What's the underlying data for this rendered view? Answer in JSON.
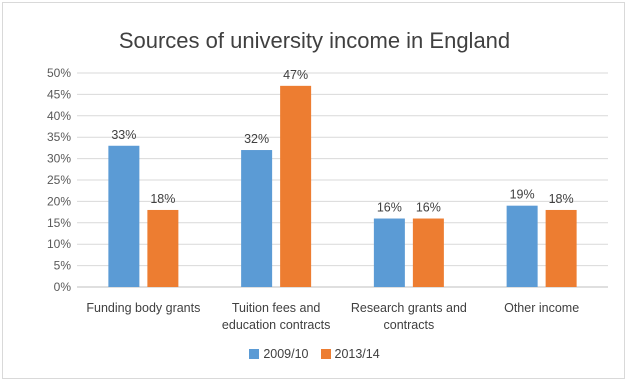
{
  "chart_data": {
    "type": "bar",
    "title": "Sources of university income in England",
    "categories": [
      [
        "Funding body grants"
      ],
      [
        "Tuition fees and",
        "education contracts"
      ],
      [
        "Research grants and",
        "contracts"
      ],
      [
        "Other income"
      ]
    ],
    "series": [
      {
        "name": "2009/10",
        "color": "#5B9BD5",
        "values": [
          33,
          32,
          16,
          19
        ],
        "labels": [
          "33%",
          "32%",
          "16%",
          "19%"
        ]
      },
      {
        "name": "2013/14",
        "color": "#ED7D31",
        "values": [
          18,
          47,
          16,
          18
        ],
        "labels": [
          "18%",
          "47%",
          "16%",
          "18%"
        ]
      }
    ],
    "yaxis": {
      "ylim": [
        0,
        50
      ],
      "step": 5,
      "tick_labels": [
        "0%",
        "5%",
        "10%",
        "15%",
        "20%",
        "25%",
        "30%",
        "35%",
        "40%",
        "45%",
        "50%"
      ]
    },
    "grid": true,
    "legend_position": "bottom"
  }
}
